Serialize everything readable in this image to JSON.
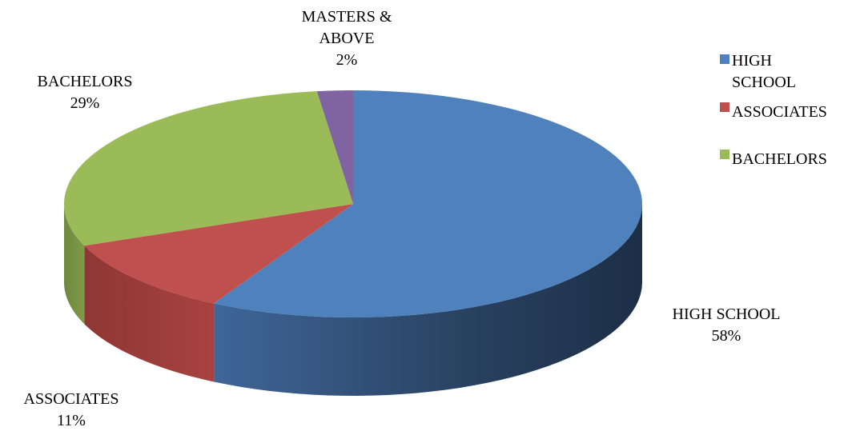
{
  "chart_data": {
    "type": "pie",
    "title": "",
    "categories": [
      "HIGH SCHOOL",
      "ASSOCIATES",
      "BACHELORS",
      "MASTERS & ABOVE"
    ],
    "values": [
      58,
      11,
      29,
      2
    ],
    "value_suffix": "%",
    "slice_labels": [
      {
        "lines": [
          "HIGH SCHOOL"
        ],
        "value": "58%"
      },
      {
        "lines": [
          "ASSOCIATES"
        ],
        "value": "11%"
      },
      {
        "lines": [
          "BACHELORS"
        ],
        "value": "29%"
      },
      {
        "lines": [
          "MASTERS &",
          "ABOVE"
        ],
        "value": "2%"
      }
    ],
    "colors": [
      "#4F81BD",
      "#C0504D",
      "#9BBB59",
      "#8064A2"
    ],
    "side_colors": [
      "#2A4464",
      "#8E3734",
      "#70883F",
      "#5B4775"
    ],
    "legend": {
      "position": "right",
      "entries": [
        {
          "lines": [
            "HIGH",
            "SCHOOL"
          ],
          "color": "#4F81BD"
        },
        {
          "lines": [
            "ASSOCIATES"
          ],
          "color": "#C0504D"
        },
        {
          "lines": [
            "BACHELORS"
          ],
          "color": "#9BBB59"
        }
      ]
    },
    "style": "3d"
  }
}
